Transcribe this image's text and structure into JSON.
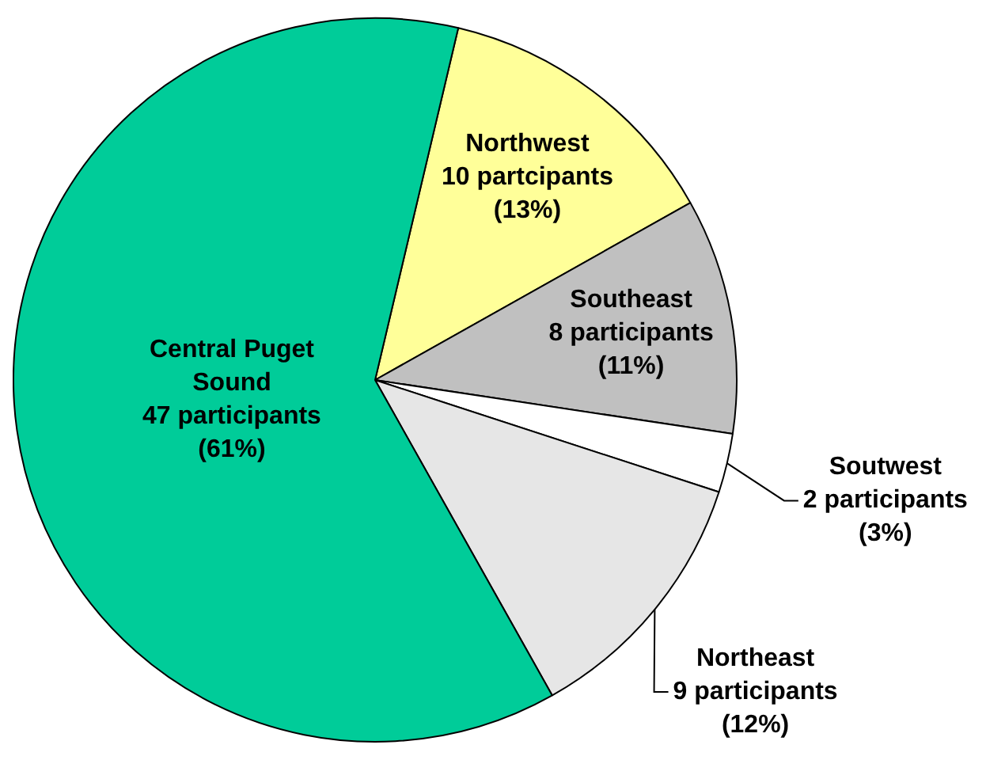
{
  "chart_data": {
    "type": "pie",
    "categories": [
      "Northwest",
      "Southeast",
      "Soutwest",
      "Northeast",
      "Central Puget Sound"
    ],
    "values": [
      10,
      8,
      2,
      9,
      47
    ],
    "colors": [
      "#ffff99",
      "#c0c0c0",
      "#ffffff",
      "#e6e6e6",
      "#00cc99"
    ],
    "value_labels": [
      "10 partcipants\n(13%)",
      "8 participants\n(11%)",
      "2 participants\n(3%)",
      "9 participants\n(12%)",
      "47 participants\n(61%)"
    ],
    "legend": false
  }
}
